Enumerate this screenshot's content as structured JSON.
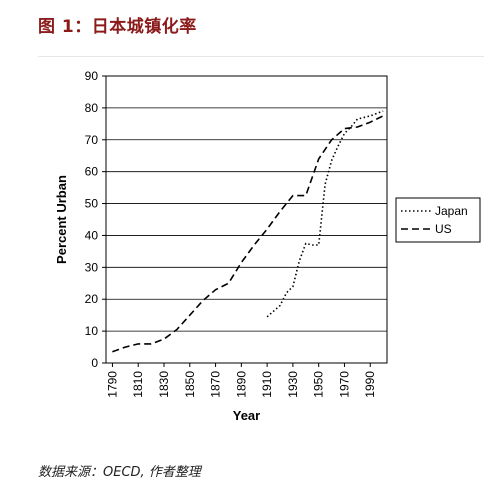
{
  "page": {
    "title": "图 1：日本城镇化率",
    "source": "数据来源：OECD, 作者整理"
  },
  "chart_data": {
    "type": "line",
    "xlabel": "Year",
    "ylabel": "Percent Urban",
    "xlim": [
      1785,
      2003
    ],
    "ylim": [
      0,
      90
    ],
    "yticks": [
      0,
      10,
      20,
      30,
      40,
      50,
      60,
      70,
      80,
      90
    ],
    "xticks": [
      1790,
      1810,
      1830,
      1850,
      1870,
      1890,
      1910,
      1930,
      1950,
      1970,
      1990
    ],
    "grid": true,
    "legend_position": "right",
    "series": [
      {
        "name": "Japan",
        "style": "dotted",
        "color": "#000000",
        "x": [
          1910,
          1920,
          1925,
          1930,
          1935,
          1940,
          1945,
          1950,
          1955,
          1960,
          1965,
          1970,
          1975,
          1980,
          1990,
          2000
        ],
        "y": [
          14.5,
          18,
          22,
          24,
          32,
          37.5,
          37,
          37,
          56,
          63.5,
          68,
          72,
          74,
          76.5,
          77.5,
          79
        ]
      },
      {
        "name": "US",
        "style": "dashed",
        "color": "#000000",
        "x": [
          1790,
          1800,
          1810,
          1820,
          1830,
          1840,
          1850,
          1860,
          1870,
          1880,
          1890,
          1900,
          1910,
          1920,
          1930,
          1940,
          1950,
          1960,
          1970,
          1980,
          1990,
          2000
        ],
        "y": [
          3.5,
          5,
          6,
          6,
          7.5,
          10.5,
          15,
          19.5,
          23,
          25,
          31.5,
          37,
          42,
          47.5,
          52.5,
          52.5,
          64,
          70,
          73.5,
          74,
          75.5,
          77.5
        ]
      }
    ]
  }
}
